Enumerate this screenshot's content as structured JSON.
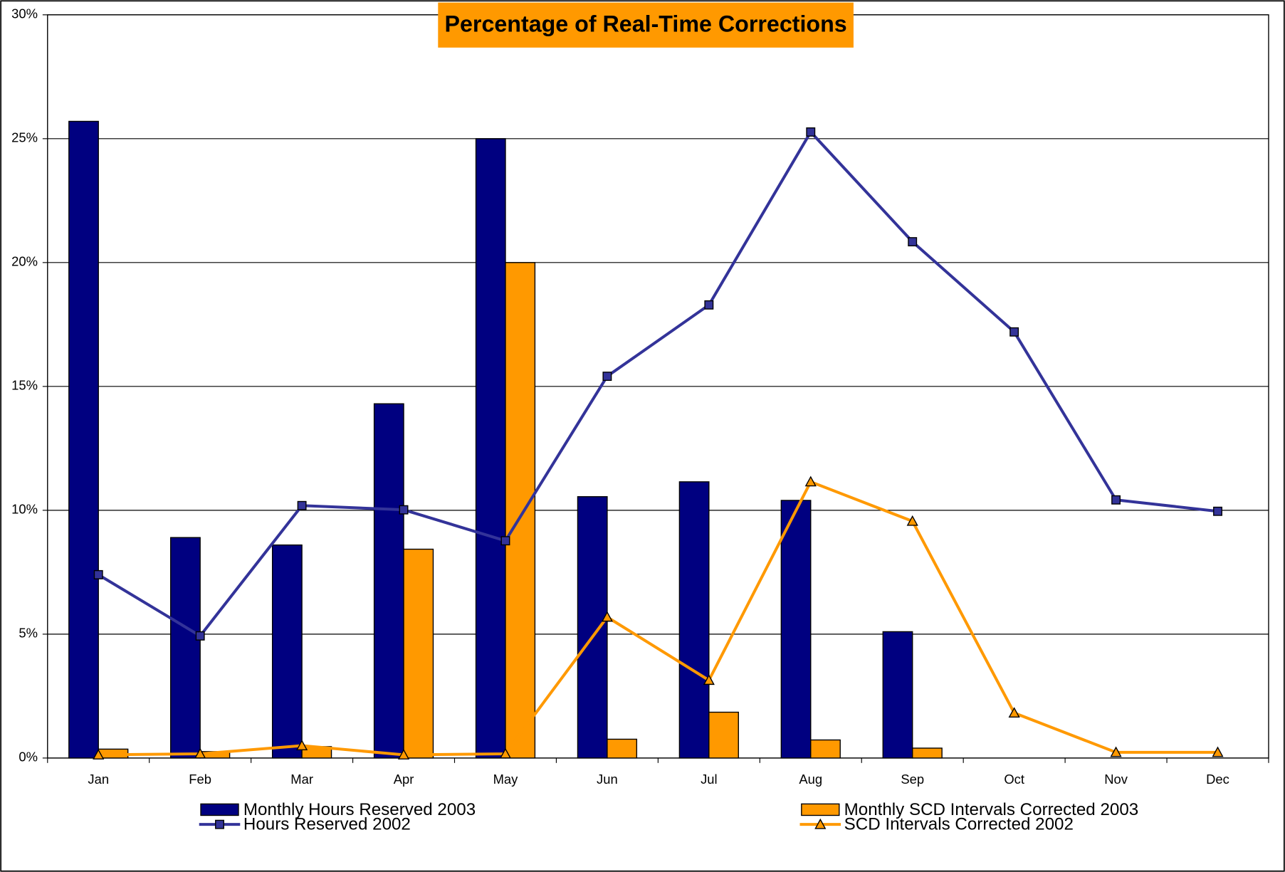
{
  "chart_data": {
    "type": "bar",
    "title": "Percentage of Real-Time Corrections",
    "title_background": "#ff9900",
    "categories": [
      "Jan",
      "Feb",
      "Mar",
      "Apr",
      "May",
      "Jun",
      "Jul",
      "Aug",
      "Sep",
      "Oct",
      "Nov",
      "Dec"
    ],
    "series": [
      {
        "name": "Monthly Hours Reserved 2003",
        "type": "bar",
        "color": "#000080",
        "values": [
          25.7,
          8.9,
          8.6,
          14.3,
          25.0,
          10.55,
          11.15,
          10.4,
          5.1,
          null,
          null,
          null
        ]
      },
      {
        "name": "Monthly SCD Intervals Corrected 2003",
        "type": "bar",
        "color": "#ff9900",
        "values": [
          0.36,
          0.26,
          0.46,
          8.43,
          20.0,
          0.76,
          1.85,
          0.73,
          0.4,
          null,
          null,
          null
        ]
      },
      {
        "name": "Hours Reserved 2002",
        "type": "line",
        "marker": "square",
        "color": "#333399",
        "values": [
          7.4,
          4.93,
          10.19,
          10.02,
          8.77,
          15.41,
          18.29,
          25.27,
          20.84,
          17.2,
          10.42,
          9.96
        ]
      },
      {
        "name": "SCD Intervals Corrected 2002",
        "type": "line",
        "marker": "triangle",
        "color": "#ff9900",
        "values": [
          0.13,
          0.17,
          0.5,
          0.13,
          0.17,
          5.69,
          3.14,
          11.15,
          9.56,
          1.82,
          0.23,
          0.23
        ]
      }
    ],
    "ylim": [
      0,
      30
    ],
    "yticks": [
      {
        "value": 0,
        "label": "0%"
      },
      {
        "value": 5,
        "label": "5%"
      },
      {
        "value": 10,
        "label": "10%"
      },
      {
        "value": 15,
        "label": "15%"
      },
      {
        "value": 20,
        "label": "20%"
      },
      {
        "value": 25,
        "label": "25%"
      },
      {
        "value": 30,
        "label": "30%"
      }
    ],
    "grid": true,
    "legend": "bottom"
  }
}
